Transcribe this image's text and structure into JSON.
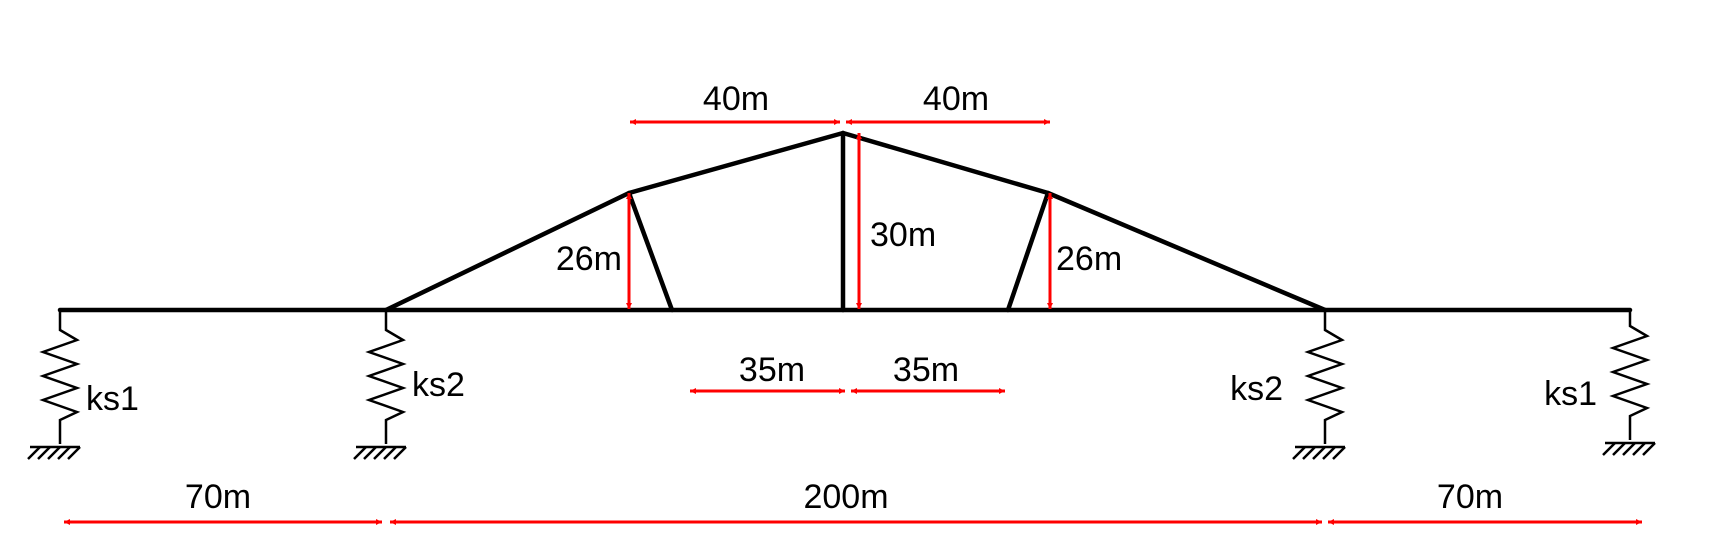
{
  "dimensions": {
    "top_left": "40m",
    "top_right": "40m",
    "left_vertical": "26m",
    "center_vertical": "30m",
    "right_vertical": "26m",
    "mid_left": "35m",
    "mid_right": "35m",
    "bottom_left": "70m",
    "bottom_center": "200m",
    "bottom_right": "70m"
  },
  "springs": {
    "left_outer": "ks1",
    "left_inner": "ks2",
    "right_inner": "ks2",
    "right_outer": "ks1"
  },
  "colors": {
    "structure": "#000000",
    "dimension": "#ff0000"
  }
}
